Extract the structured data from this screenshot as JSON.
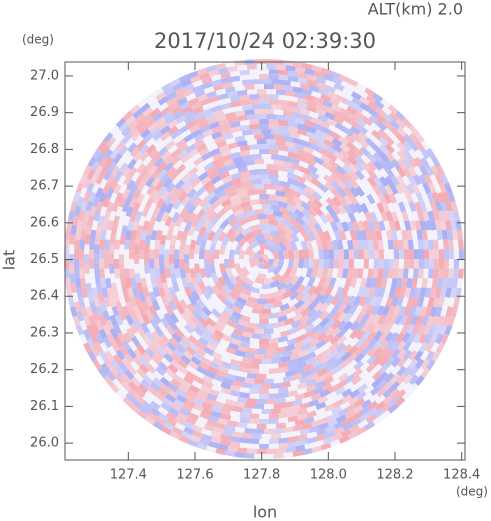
{
  "chart_data": {
    "type": "radar-ppi",
    "title": "2017/10/24 02:39:30",
    "subtitle": "ALT(km) 2.0",
    "x_label": "lon",
    "y_label": "lat",
    "x_unit": "(deg)",
    "y_unit": "(deg)",
    "xlim": [
      127.21,
      128.41
    ],
    "ylim": [
      25.954,
      27.038
    ],
    "xticks": [
      127.4,
      127.6,
      127.8,
      {
        "value": 128,
        "label": "128.0"
      },
      128.2,
      128.4
    ],
    "yticks": [
      {
        "value": 26,
        "label": "26.0"
      },
      26.1,
      26.2,
      26.3,
      26.4,
      26.5,
      26.6,
      26.7,
      26.8,
      26.9,
      {
        "value": 27,
        "label": "27.0"
      }
    ]
  }
}
